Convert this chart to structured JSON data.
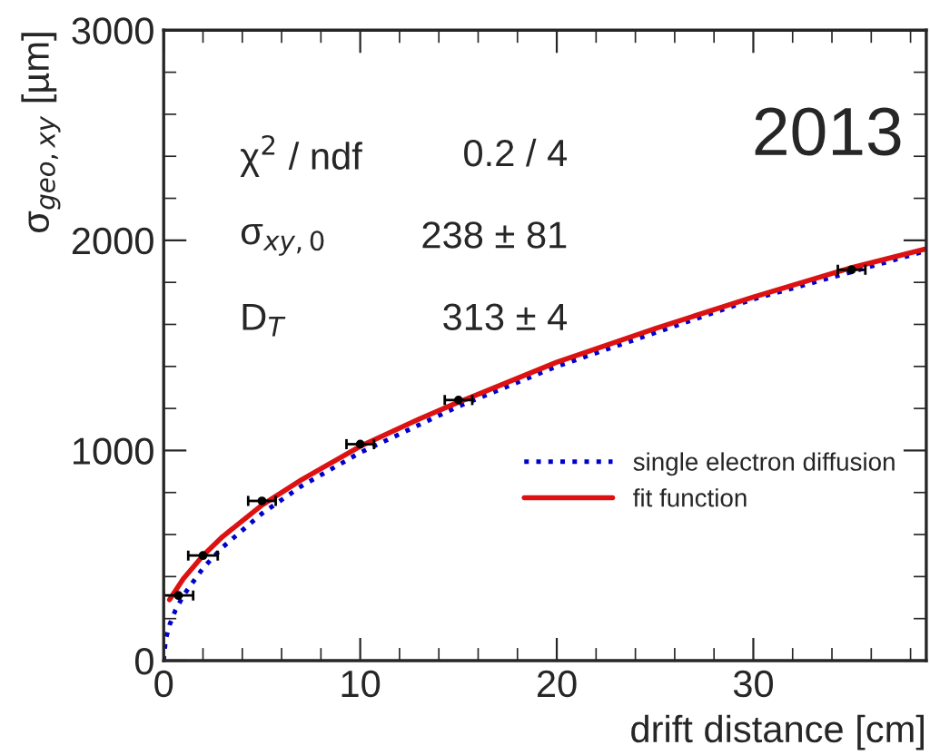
{
  "chart_data": {
    "type": "scatter",
    "xlabel": "drift distance [cm]",
    "ylabel": "σ$_{geo,xy}$ [µm]",
    "xlim": [
      0,
      38.8
    ],
    "ylim": [
      0,
      3000
    ],
    "xticks": [
      0,
      10,
      20,
      30
    ],
    "yticks": [
      0,
      1000,
      2000,
      3000
    ],
    "grid": false,
    "legend": "bottom right",
    "annotations": [
      "χ$^{2}$ / ndf",
      "0.2 / 4",
      "σ$_{xy,0}$",
      "238 ± 81",
      "D$_{T}$",
      "313 ± 4",
      "2013"
    ],
    "series": [
      {
        "type": "line",
        "name": "single electron diffusion",
        "color": "#0000cc",
        "line_style": "dotted",
        "x": [
          0,
          0.1,
          0.3,
          0.6,
          1,
          2,
          3,
          5,
          7,
          10,
          15,
          20,
          25,
          30,
          35,
          38.8
        ],
        "values": [
          0,
          100,
          170,
          240,
          310,
          440,
          540,
          700,
          830,
          990,
          1210,
          1400,
          1560,
          1720,
          1850,
          1950
        ]
      },
      {
        "type": "line",
        "name": "fit function",
        "color": "#dd1111",
        "line_style": "solid",
        "x": [
          0.3,
          1,
          2,
          3,
          5,
          7,
          10,
          13,
          15,
          20,
          25,
          30,
          35,
          38.8
        ],
        "values": [
          290,
          390,
          500,
          590,
          740,
          860,
          1020,
          1150,
          1230,
          1420,
          1580,
          1730,
          1870,
          1960
        ]
      },
      {
        "color": "#000000",
        "marker": "circle",
        "x": [
          0.75,
          2,
          5,
          10,
          15,
          35
        ],
        "values": [
          310,
          500,
          760,
          1030,
          1240,
          1860
        ],
        "xerrors": [
          0.75,
          0.75,
          0.7,
          0.7,
          0.7,
          0.7
        ]
      }
    ]
  }
}
